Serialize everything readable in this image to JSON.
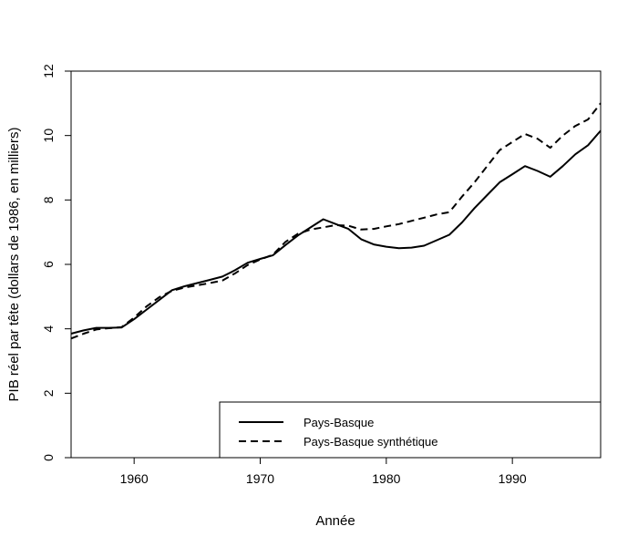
{
  "chart_data": {
    "type": "line",
    "title": "",
    "xlabel": "Année",
    "ylabel": "PIB réel par tête (dollars de 1986, en milliers)",
    "xlim": [
      1955,
      1997
    ],
    "ylim": [
      0,
      12
    ],
    "xticks": [
      1960,
      1970,
      1980,
      1990
    ],
    "yticks": [
      0,
      2,
      4,
      6,
      8,
      10,
      12
    ],
    "grid": false,
    "legend_position": "bottom-right",
    "series": [
      {
        "name": "Pays-Basque",
        "style": "solid",
        "color": "#000000",
        "x": [
          1955,
          1956,
          1957,
          1958,
          1959,
          1960,
          1961,
          1962,
          1963,
          1964,
          1965,
          1966,
          1967,
          1968,
          1969,
          1970,
          1971,
          1972,
          1973,
          1974,
          1975,
          1976,
          1977,
          1978,
          1979,
          1980,
          1981,
          1982,
          1983,
          1984,
          1985,
          1986,
          1987,
          1988,
          1989,
          1990,
          1991,
          1992,
          1993,
          1994,
          1995,
          1996,
          1997
        ],
        "y": [
          3.85,
          3.95,
          4.03,
          4.03,
          4.04,
          4.3,
          4.6,
          4.9,
          5.2,
          5.32,
          5.42,
          5.52,
          5.62,
          5.82,
          6.05,
          6.17,
          6.28,
          6.6,
          6.9,
          7.15,
          7.4,
          7.25,
          7.1,
          6.78,
          6.62,
          6.55,
          6.5,
          6.52,
          6.58,
          6.75,
          6.92,
          7.3,
          7.75,
          8.15,
          8.55,
          8.8,
          9.05,
          8.9,
          8.72,
          9.05,
          9.42,
          9.7,
          10.15
        ]
      },
      {
        "name": "Pays-Basque synthétique",
        "style": "dashed",
        "color": "#000000",
        "x": [
          1955,
          1956,
          1957,
          1958,
          1959,
          1960,
          1961,
          1962,
          1963,
          1964,
          1965,
          1966,
          1967,
          1968,
          1969,
          1970,
          1971,
          1972,
          1973,
          1974,
          1975,
          1976,
          1977,
          1978,
          1979,
          1980,
          1981,
          1982,
          1983,
          1984,
          1985,
          1986,
          1987,
          1988,
          1989,
          1990,
          1991,
          1992,
          1993,
          1994,
          1995,
          1996,
          1997
        ],
        "y": [
          3.7,
          3.85,
          3.98,
          4.02,
          4.05,
          4.35,
          4.7,
          4.98,
          5.18,
          5.28,
          5.35,
          5.42,
          5.5,
          5.72,
          5.98,
          6.15,
          6.3,
          6.7,
          6.95,
          7.08,
          7.15,
          7.22,
          7.2,
          7.08,
          7.1,
          7.18,
          7.25,
          7.35,
          7.45,
          7.55,
          7.62,
          8.1,
          8.55,
          9.05,
          9.55,
          9.8,
          10.05,
          9.9,
          9.62,
          10.0,
          10.3,
          10.5,
          11.0
        ]
      }
    ]
  }
}
